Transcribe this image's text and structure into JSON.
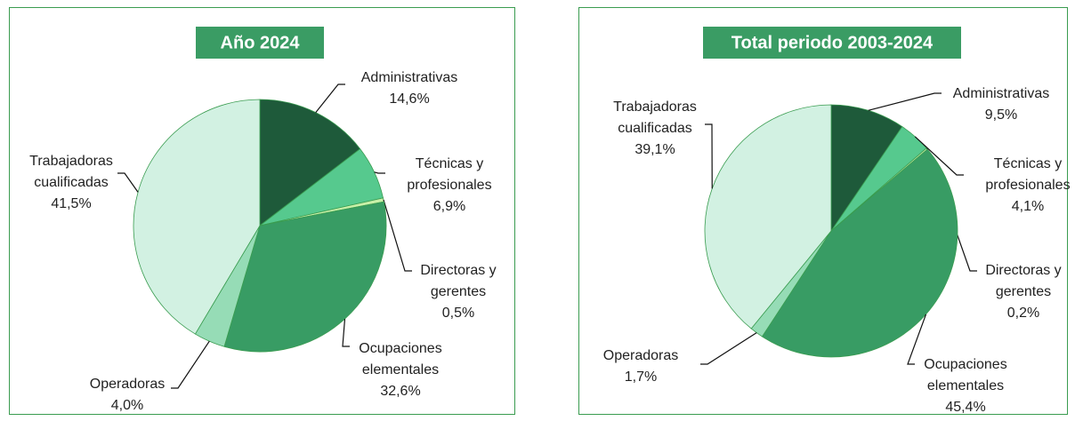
{
  "chart_data": [
    {
      "type": "pie",
      "title": "Año 2024",
      "categories": [
        "Administrativas",
        "Técnicas y profesionales",
        "Directoras y gerentes",
        "Ocupaciones elementales",
        "Operadoras",
        "Trabajadoras cualificadas"
      ],
      "values": [
        14.6,
        6.9,
        0.5,
        32.6,
        4.0,
        41.5
      ],
      "value_labels": [
        "14,6%",
        "6,9%",
        "0,5%",
        "32,6%",
        "4,0%",
        "41,5%"
      ],
      "colors": [
        "#1e5a3a",
        "#56c98e",
        "#c8f0a8",
        "#389c64",
        "#96dcb6",
        "#d2f1e2"
      ]
    },
    {
      "type": "pie",
      "title": "Total periodo 2003-2024",
      "categories": [
        "Administrativas",
        "Técnicas y profesionales",
        "Directoras y gerentes",
        "Ocupaciones elementales",
        "Operadoras",
        "Trabajadoras cualificadas"
      ],
      "values": [
        9.5,
        4.1,
        0.2,
        45.4,
        1.7,
        39.1
      ],
      "value_labels": [
        "9,5%",
        "4,1%",
        "0,2%",
        "45,4%",
        "1,7%",
        "39,1%"
      ],
      "colors": [
        "#1e5a3a",
        "#56c98e",
        "#c8f0a8",
        "#389c64",
        "#96dcb6",
        "#d2f1e2"
      ]
    }
  ]
}
